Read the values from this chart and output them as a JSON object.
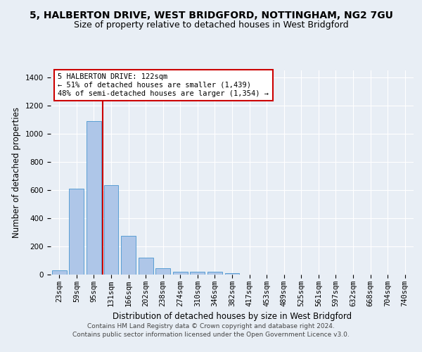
{
  "title": "5, HALBERTON DRIVE, WEST BRIDGFORD, NOTTINGHAM, NG2 7GU",
  "subtitle": "Size of property relative to detached houses in West Bridgford",
  "xlabel": "Distribution of detached houses by size in West Bridgford",
  "ylabel": "Number of detached properties",
  "categories": [
    "23sqm",
    "59sqm",
    "95sqm",
    "131sqm",
    "166sqm",
    "202sqm",
    "238sqm",
    "274sqm",
    "310sqm",
    "346sqm",
    "382sqm",
    "417sqm",
    "453sqm",
    "489sqm",
    "525sqm",
    "561sqm",
    "597sqm",
    "632sqm",
    "668sqm",
    "704sqm",
    "740sqm"
  ],
  "values": [
    30,
    610,
    1090,
    635,
    275,
    120,
    45,
    20,
    20,
    20,
    10,
    0,
    0,
    0,
    0,
    0,
    0,
    0,
    0,
    0,
    0
  ],
  "bar_color": "#aec6e8",
  "bar_edge_color": "#5a9fd4",
  "vline_x_index": 2.5,
  "vline_color": "#cc0000",
  "annotation_text": "5 HALBERTON DRIVE: 122sqm\n← 51% of detached houses are smaller (1,439)\n48% of semi-detached houses are larger (1,354) →",
  "annotation_box_color": "#ffffff",
  "annotation_box_edge_color": "#cc0000",
  "ylim": [
    0,
    1450
  ],
  "yticks": [
    0,
    200,
    400,
    600,
    800,
    1000,
    1200,
    1400
  ],
  "background_color": "#e8eef5",
  "plot_background_color": "#e8eef5",
  "footer_line1": "Contains HM Land Registry data © Crown copyright and database right 2024.",
  "footer_line2": "Contains public sector information licensed under the Open Government Licence v3.0.",
  "title_fontsize": 10,
  "subtitle_fontsize": 9,
  "xlabel_fontsize": 8.5,
  "ylabel_fontsize": 8.5,
  "tick_fontsize": 7.5,
  "annotation_fontsize": 7.5,
  "footer_fontsize": 6.5
}
